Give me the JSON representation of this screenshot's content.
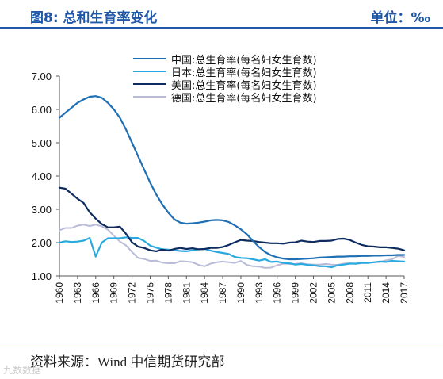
{
  "header": {
    "title": "图8:   总和生育率变化",
    "unit": "单位：‰"
  },
  "footer": {
    "source": "资料来源：Wind  中信期货研究部",
    "watermark": "九数数据"
  },
  "chart_data": {
    "type": "line",
    "title": "图8:   总和生育率变化",
    "xlabel": "",
    "ylabel": "",
    "ylim": [
      1.0,
      7.0
    ],
    "yticks": [
      "1.00",
      "2.00",
      "3.00",
      "4.00",
      "5.00",
      "6.00",
      "7.00"
    ],
    "xticks": [
      "1960",
      "1963",
      "1966",
      "1969",
      "1972",
      "1975",
      "1978",
      "1981",
      "1984",
      "1987",
      "1990",
      "1993",
      "1996",
      "1999",
      "2002",
      "2005",
      "2008",
      "2011",
      "2014",
      "2017"
    ],
    "legend_position": "top-right",
    "x": [
      1960,
      1961,
      1962,
      1963,
      1964,
      1965,
      1966,
      1967,
      1968,
      1969,
      1970,
      1971,
      1972,
      1973,
      1974,
      1975,
      1976,
      1977,
      1978,
      1979,
      1980,
      1981,
      1982,
      1983,
      1984,
      1985,
      1986,
      1987,
      1988,
      1989,
      1990,
      1991,
      1992,
      1993,
      1994,
      1995,
      1996,
      1997,
      1998,
      1999,
      2000,
      2001,
      2002,
      2003,
      2004,
      2005,
      2006,
      2007,
      2008,
      2009,
      2010,
      2011,
      2012,
      2013,
      2014,
      2015,
      2016,
      2017
    ],
    "series": [
      {
        "name": "中国:总生育率(每名妇女生育数)",
        "color": "#1f6fb5",
        "values": [
          5.75,
          5.9,
          6.05,
          6.2,
          6.3,
          6.38,
          6.4,
          6.35,
          6.2,
          6.0,
          5.75,
          5.4,
          5.0,
          4.6,
          4.2,
          3.8,
          3.45,
          3.15,
          2.9,
          2.7,
          2.6,
          2.57,
          2.58,
          2.6,
          2.63,
          2.67,
          2.68,
          2.67,
          2.62,
          2.52,
          2.4,
          2.25,
          2.05,
          1.87,
          1.72,
          1.62,
          1.56,
          1.52,
          1.5,
          1.5,
          1.51,
          1.52,
          1.53,
          1.55,
          1.56,
          1.57,
          1.58,
          1.58,
          1.59,
          1.59,
          1.6,
          1.6,
          1.61,
          1.61,
          1.62,
          1.62,
          1.63,
          1.63
        ]
      },
      {
        "name": "日本:总生育率(每名妇女生育数)",
        "color": "#29a9e0",
        "values": [
          2.0,
          2.04,
          2.02,
          2.03,
          2.06,
          2.14,
          1.58,
          2.0,
          2.13,
          2.13,
          2.13,
          2.16,
          2.14,
          2.14,
          2.05,
          1.91,
          1.85,
          1.8,
          1.79,
          1.77,
          1.75,
          1.74,
          1.77,
          1.8,
          1.81,
          1.76,
          1.72,
          1.69,
          1.66,
          1.57,
          1.54,
          1.53,
          1.5,
          1.46,
          1.5,
          1.42,
          1.43,
          1.39,
          1.38,
          1.34,
          1.36,
          1.33,
          1.32,
          1.29,
          1.29,
          1.26,
          1.32,
          1.34,
          1.37,
          1.37,
          1.39,
          1.39,
          1.41,
          1.43,
          1.42,
          1.45,
          1.44,
          1.43
        ]
      },
      {
        "name": "美国:总生育率(每名妇女生育数)",
        "color": "#0d2b5e",
        "values": [
          3.65,
          3.62,
          3.47,
          3.32,
          3.19,
          2.91,
          2.72,
          2.56,
          2.46,
          2.46,
          2.48,
          2.27,
          2.01,
          1.88,
          1.84,
          1.77,
          1.74,
          1.79,
          1.76,
          1.81,
          1.84,
          1.81,
          1.83,
          1.8,
          1.81,
          1.84,
          1.84,
          1.87,
          1.93,
          2.01,
          2.08,
          2.06,
          2.05,
          2.02,
          2.0,
          1.98,
          1.98,
          1.97,
          2.0,
          2.01,
          2.06,
          2.03,
          2.02,
          2.05,
          2.05,
          2.06,
          2.11,
          2.12,
          2.08,
          2.0,
          1.93,
          1.89,
          1.88,
          1.86,
          1.86,
          1.84,
          1.82,
          1.77
        ]
      },
      {
        "name": "德国:总生育率(每名妇女生育数)",
        "color": "#b8bcd8",
        "values": [
          2.37,
          2.44,
          2.44,
          2.51,
          2.54,
          2.5,
          2.54,
          2.49,
          2.39,
          2.21,
          2.03,
          1.92,
          1.72,
          1.54,
          1.51,
          1.45,
          1.46,
          1.4,
          1.38,
          1.38,
          1.44,
          1.43,
          1.41,
          1.33,
          1.29,
          1.37,
          1.41,
          1.43,
          1.41,
          1.39,
          1.45,
          1.33,
          1.29,
          1.28,
          1.24,
          1.25,
          1.32,
          1.37,
          1.36,
          1.36,
          1.38,
          1.35,
          1.34,
          1.34,
          1.36,
          1.34,
          1.33,
          1.37,
          1.38,
          1.36,
          1.39,
          1.39,
          1.41,
          1.42,
          1.47,
          1.5,
          1.6,
          1.57
        ]
      }
    ]
  }
}
